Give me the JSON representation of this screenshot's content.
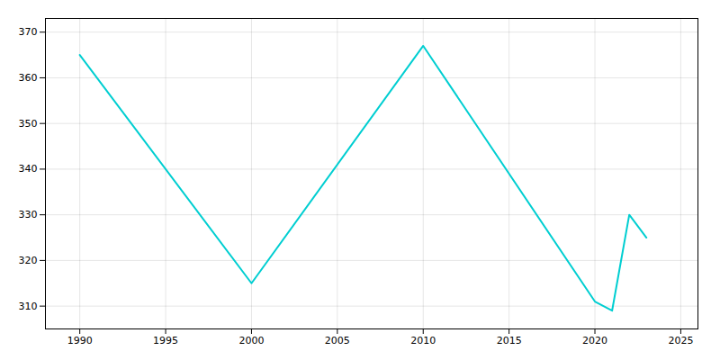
{
  "chart_data": {
    "type": "line",
    "x": [
      1990,
      2000,
      2010,
      2020,
      2021,
      2022,
      2023
    ],
    "values": [
      365,
      315,
      367,
      311,
      309,
      330,
      325
    ],
    "color": "#00CED1",
    "xlim": [
      1988,
      2026
    ],
    "ylim": [
      305,
      373
    ],
    "xticks": [
      1990,
      1995,
      2000,
      2005,
      2010,
      2015,
      2020,
      2025
    ],
    "yticks": [
      310,
      320,
      330,
      340,
      350,
      360,
      370
    ],
    "grid": true
  }
}
